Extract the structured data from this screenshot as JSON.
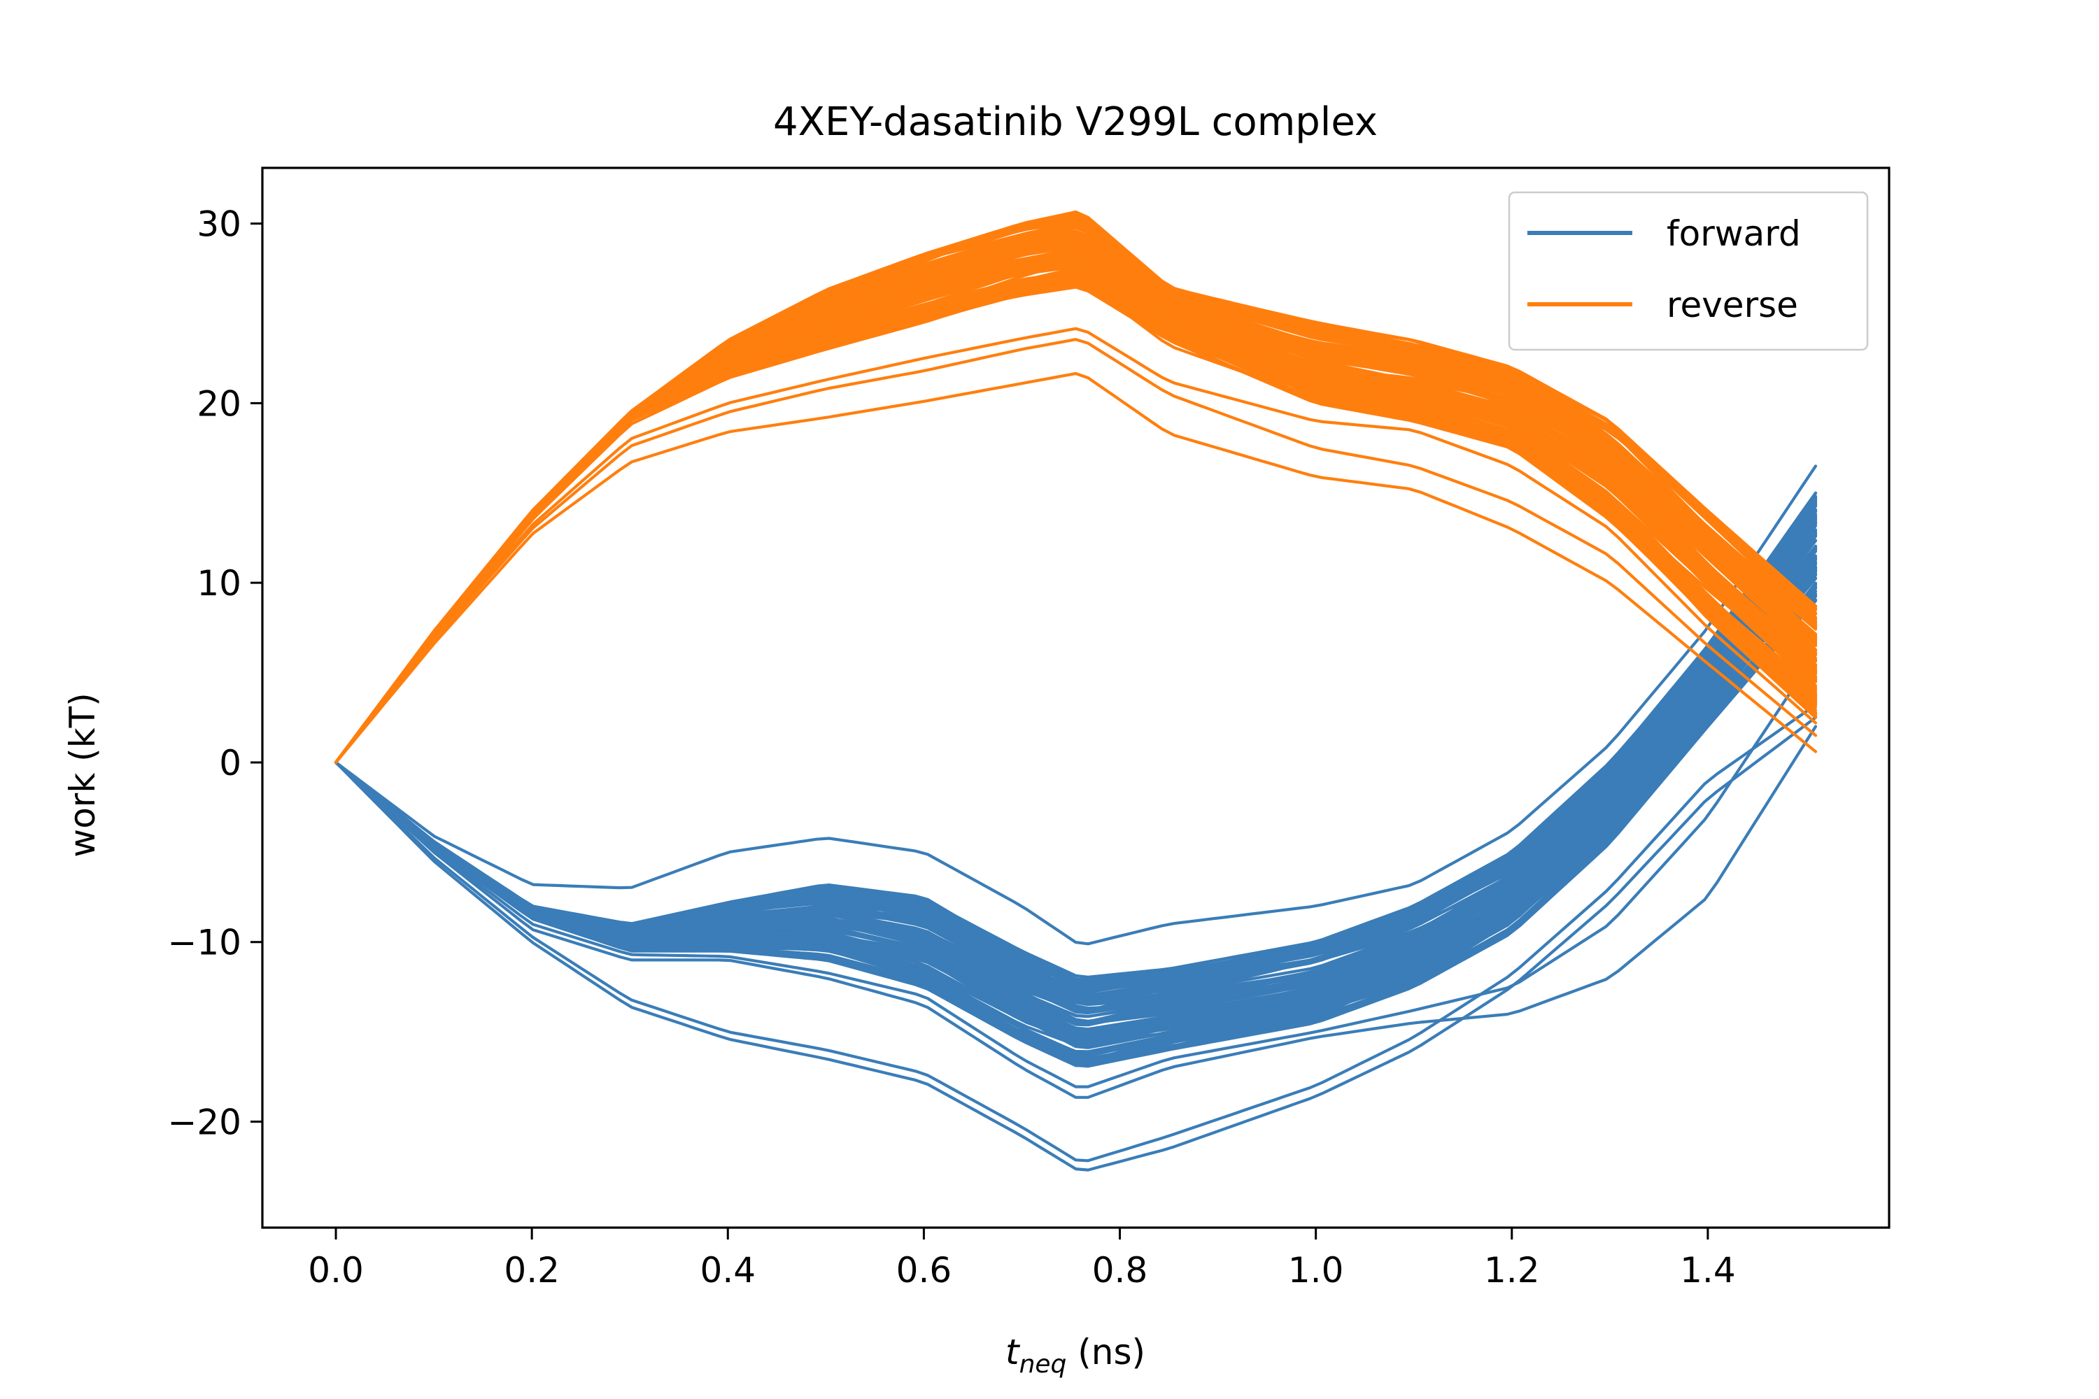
{
  "chart_data": {
    "type": "line",
    "title": "4XEY-dasatinib V299L complex",
    "xlabel_main": "t",
    "xlabel_sub": "neq",
    "xlabel_unit": " (ns)",
    "ylabel": "work (kT)",
    "xlim": [
      -0.075,
      1.585
    ],
    "ylim": [
      -25.9,
      33.1
    ],
    "x_ticks": [
      0.0,
      0.2,
      0.4,
      0.6,
      0.8,
      1.0,
      1.2,
      1.4
    ],
    "x_tick_labels": [
      "0.0",
      "0.2",
      "0.4",
      "0.6",
      "0.8",
      "1.0",
      "1.2",
      "1.4"
    ],
    "y_ticks": [
      -20,
      -10,
      0,
      10,
      20,
      30
    ],
    "y_tick_labels": [
      "−20",
      "−10",
      "0",
      "10",
      "20",
      "30"
    ],
    "grid": false,
    "legend_position": "top-right",
    "colors": {
      "forward": "#3a7db8",
      "reverse": "#ff7f0e"
    },
    "series": [
      {
        "name": "forward",
        "color": "#3a7db8",
        "x": [
          0.0,
          0.1,
          0.2,
          0.3,
          0.4,
          0.5,
          0.6,
          0.7,
          0.76,
          0.85,
          1.0,
          1.1,
          1.2,
          1.3,
          1.4,
          1.51
        ],
        "band_low": [
          0,
          -5.5,
          -10.0,
          -13.5,
          -15.4,
          -16.5,
          -17.8,
          -20.8,
          -22.6,
          -21.0,
          -18.6,
          -16.5,
          -13.0,
          -8.0,
          -2.5,
          2.0
        ],
        "band_high": [
          0,
          -4.2,
          -6.8,
          -6.5,
          -5.0,
          -4.3,
          -5.5,
          -8.5,
          -10.2,
          -9.0,
          -7.9,
          -6.5,
          -3.8,
          1.0,
          8.0,
          16.5
        ],
        "dense_low": [
          0,
          -4.8,
          -8.7,
          -10.5,
          -10.5,
          -11.0,
          -12.5,
          -15.5,
          -17.0,
          -16.0,
          -14.5,
          -12.5,
          -9.5,
          -4.5,
          2.0,
          9.0
        ],
        "dense_high": [
          0,
          -4.4,
          -8.0,
          -9.0,
          -7.8,
          -6.8,
          -7.5,
          -10.5,
          -12.0,
          -11.5,
          -10.0,
          -8.0,
          -5.0,
          0.0,
          6.5,
          15.0
        ],
        "outliers": [
          [
            0,
            -4.1,
            -6.8,
            -7.0,
            -5.0,
            -4.2,
            -5.0,
            -8.0,
            -10.2,
            -9.0,
            -8.0,
            -6.8,
            -3.8,
            1.0,
            7.5,
            16.5
          ],
          [
            0,
            -5.5,
            -10.0,
            -13.6,
            -15.4,
            -16.5,
            -17.8,
            -20.8,
            -22.8,
            -21.5,
            -18.6,
            -16.0,
            -12.5,
            -7.8,
            -2.0,
            2.5
          ],
          [
            0,
            -5.3,
            -9.7,
            -13.2,
            -15.0,
            -16.0,
            -17.3,
            -20.3,
            -22.3,
            -20.8,
            -18.0,
            -15.3,
            -11.8,
            -7.0,
            -1.0,
            3.2
          ],
          [
            0,
            -5.0,
            -9.3,
            -11.0,
            -11.0,
            -12.0,
            -13.5,
            -17.0,
            -18.8,
            -17.0,
            -15.3,
            -14.5,
            -14.0,
            -12.0,
            -7.5,
            2.0
          ],
          [
            0,
            -4.9,
            -9.0,
            -10.7,
            -10.8,
            -11.7,
            -13.0,
            -16.5,
            -18.2,
            -16.5,
            -15.0,
            -13.8,
            -12.5,
            -9.0,
            -3.0,
            6.0
          ]
        ]
      },
      {
        "name": "reverse",
        "color": "#ff7f0e",
        "x": [
          0.0,
          0.1,
          0.2,
          0.3,
          0.4,
          0.5,
          0.6,
          0.7,
          0.76,
          0.85,
          1.0,
          1.1,
          1.2,
          1.3,
          1.4,
          1.51
        ],
        "band_low": [
          0,
          6.5,
          12.5,
          16.5,
          18.3,
          19.2,
          20.0,
          21.0,
          21.5,
          18.0,
          15.8,
          15.0,
          13.0,
          10.0,
          5.5,
          0.5
        ],
        "band_high": [
          0,
          7.3,
          14.0,
          19.5,
          23.5,
          26.3,
          28.3,
          30.0,
          30.7,
          26.5,
          24.5,
          23.5,
          22.0,
          19.0,
          14.0,
          8.7
        ],
        "dense_low": [
          0,
          7.0,
          13.5,
          19.0,
          21.5,
          23.0,
          24.5,
          26.0,
          26.5,
          23.5,
          20.0,
          19.0,
          17.5,
          13.5,
          8.0,
          2.5
        ],
        "dense_high": [
          0,
          7.3,
          14.0,
          19.5,
          23.5,
          26.3,
          28.3,
          30.0,
          30.7,
          26.5,
          24.5,
          23.5,
          22.0,
          19.0,
          14.0,
          8.7
        ],
        "outliers": [
          [
            0,
            6.6,
            12.7,
            16.7,
            18.4,
            19.2,
            20.1,
            21.1,
            21.7,
            18.3,
            15.9,
            15.2,
            13.0,
            10.0,
            5.5,
            0.6
          ],
          [
            0,
            6.8,
            13.0,
            17.6,
            19.5,
            20.8,
            21.8,
            23.0,
            23.6,
            20.5,
            17.5,
            16.5,
            14.5,
            11.5,
            6.5,
            1.5
          ],
          [
            0,
            6.9,
            13.2,
            18.0,
            20.0,
            21.3,
            22.5,
            23.6,
            24.2,
            21.2,
            19.0,
            18.5,
            16.5,
            13.0,
            7.5,
            2.2
          ],
          [
            0,
            7.0,
            13.5,
            18.8,
            21.4,
            23.0,
            24.6,
            26.2,
            26.9,
            23.2,
            20.3,
            19.2,
            17.8,
            14.5,
            9.0,
            3.5
          ]
        ]
      }
    ]
  }
}
